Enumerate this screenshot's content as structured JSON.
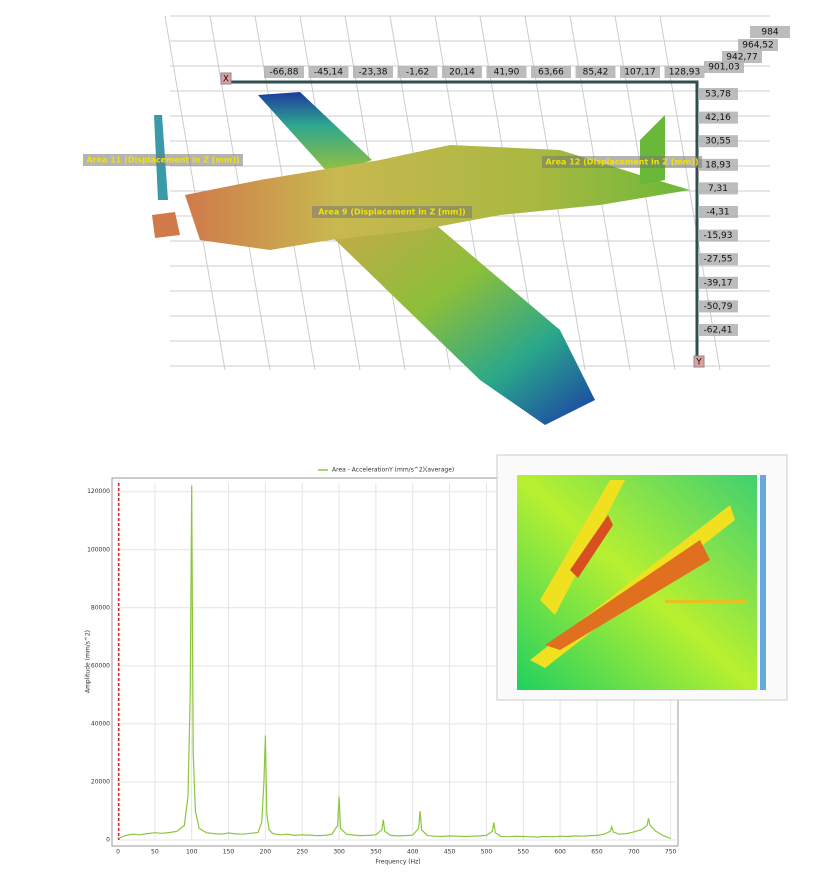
{
  "view3d": {
    "axis_x_label": "X",
    "axis_y_label": "Y",
    "x_ticks": [
      "-66,88",
      "-45,14",
      "-23,38",
      "-1,62",
      "20,14",
      "41,90",
      "63,66",
      "85,42",
      "107,17",
      "128,93"
    ],
    "y_ticks": [
      "53,78",
      "42,16",
      "30,55",
      "18,93",
      "7,31",
      "-4,31",
      "-15,93",
      "-27,55",
      "-39,17",
      "-50,79",
      "-62,41"
    ],
    "z_ticks": [
      "984",
      "964,52",
      "942,77",
      "901,03"
    ],
    "areas": [
      "Area 11 (Displacement in Z [mm])",
      "Area 12 (Displacement in Z [mm])",
      "Area 9 (Displacement in Z [mm])"
    ]
  },
  "chart_data": {
    "type": "line",
    "xlabel": "Frequency (Hz)",
    "ylabel": "Amplitude (mm/s^2)",
    "x": [
      0,
      10,
      20,
      30,
      40,
      50,
      60,
      70,
      80,
      90,
      95,
      98,
      100,
      102,
      105,
      110,
      120,
      130,
      140,
      150,
      160,
      170,
      180,
      190,
      195,
      198,
      200,
      202,
      205,
      210,
      220,
      230,
      240,
      250,
      260,
      270,
      280,
      290,
      298,
      300,
      302,
      310,
      320,
      330,
      340,
      350,
      358,
      360,
      362,
      370,
      380,
      390,
      400,
      408,
      410,
      412,
      420,
      430,
      440,
      450,
      460,
      470,
      480,
      490,
      500,
      508,
      510,
      512,
      520,
      530,
      540,
      550,
      560,
      570,
      580,
      590,
      600,
      610,
      620,
      630,
      640,
      650,
      660,
      668,
      670,
      672,
      680,
      690,
      700,
      710,
      718,
      720,
      722,
      730,
      740,
      750
    ],
    "series": [
      {
        "name": "Area - AccelerationY (mm/s^2)(average)",
        "color": "#8cc63f",
        "values": [
          500,
          1500,
          2000,
          1800,
          2200,
          2500,
          2300,
          2600,
          3000,
          5000,
          15000,
          50000,
          122000,
          30000,
          10000,
          4000,
          2500,
          2200,
          2000,
          2400,
          2100,
          2000,
          2300,
          2600,
          6000,
          20000,
          36000,
          9000,
          3500,
          2200,
          1800,
          2000,
          1600,
          1800,
          1700,
          1500,
          1600,
          1900,
          5000,
          15000,
          4000,
          2000,
          1700,
          1500,
          1600,
          1800,
          3500,
          7000,
          3000,
          1600,
          1400,
          1500,
          1700,
          4000,
          10000,
          3500,
          1500,
          1300,
          1200,
          1400,
          1300,
          1200,
          1300,
          1400,
          1600,
          3000,
          6000,
          2500,
          1200,
          1100,
          1300,
          1200,
          1100,
          1000,
          1200,
          1100,
          1300,
          1200,
          1400,
          1300,
          1500,
          1600,
          2000,
          3000,
          4500,
          2800,
          2000,
          2200,
          2800,
          3500,
          5000,
          7500,
          5000,
          3000,
          1500,
          500
        ]
      }
    ],
    "xlim": [
      0,
      760
    ],
    "ylim": [
      0,
      123000
    ],
    "xticks": [
      0,
      50,
      100,
      150,
      200,
      250,
      300,
      350,
      400,
      450,
      500,
      550,
      600,
      650,
      700,
      750
    ],
    "yticks": [
      0,
      20000,
      40000,
      60000,
      80000,
      100000,
      120000
    ],
    "grid": true,
    "marker_x": 1,
    "marker_color": "#e02020"
  }
}
